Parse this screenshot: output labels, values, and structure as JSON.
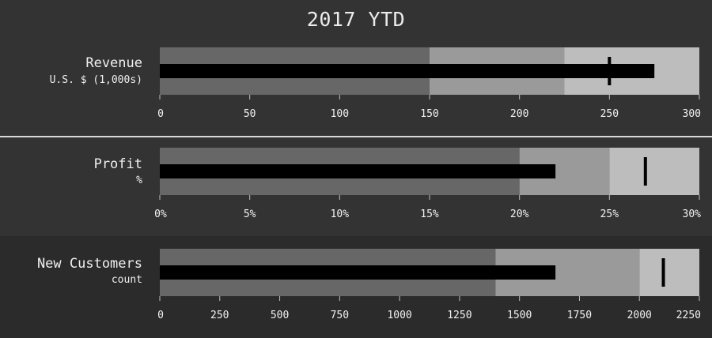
{
  "title": "2017 YTD",
  "colors": {
    "background_top": "#333333",
    "background_bottom": "#2b2b2b",
    "range_poor": "#676767",
    "range_satisfactory": "#9a9a9a",
    "range_good": "#bdbdbd",
    "measure": "#000000",
    "target": "#000000",
    "text": "#f0f0f0"
  },
  "chart_data": [
    {
      "type": "bullet",
      "title": "Revenue",
      "subtitle": "U.S. $ (1,000s)",
      "ranges": [
        150,
        225,
        300
      ],
      "measure": 275,
      "target": 250,
      "xlim": [
        0,
        300
      ],
      "ticks": [
        0,
        50,
        100,
        150,
        200,
        250,
        300
      ],
      "tick_labels": [
        "0",
        "50",
        "100",
        "150",
        "200",
        "250",
        "300"
      ]
    },
    {
      "type": "bullet",
      "title": "Profit",
      "subtitle": "%",
      "ranges": [
        20,
        25,
        30
      ],
      "measure": 22,
      "target": 27,
      "xlim": [
        0,
        30
      ],
      "ticks": [
        0,
        5,
        10,
        15,
        20,
        25,
        30
      ],
      "tick_labels": [
        "0%",
        "5%",
        "10%",
        "15%",
        "20%",
        "25%",
        "30%"
      ]
    },
    {
      "type": "bullet",
      "title": "New Customers",
      "subtitle": "count",
      "ranges": [
        1400,
        2000,
        2250
      ],
      "measure": 1650,
      "target": 2100,
      "xlim": [
        0,
        2250
      ],
      "ticks": [
        0,
        250,
        500,
        750,
        1000,
        1250,
        1500,
        1750,
        2000,
        2250
      ],
      "tick_labels": [
        "0",
        "250",
        "500",
        "750",
        "1000",
        "1250",
        "1500",
        "1750",
        "2000",
        "2250"
      ]
    }
  ]
}
